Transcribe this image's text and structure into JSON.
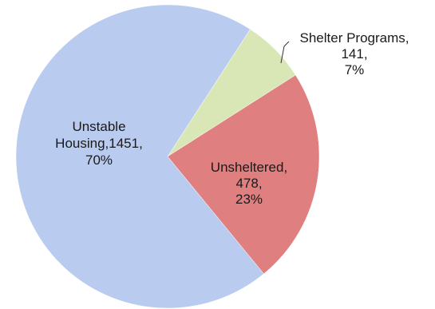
{
  "chart_data": {
    "type": "pie",
    "slices": [
      {
        "label_lines": [
          "Unstable",
          "Housing,1451,",
          "70%"
        ],
        "category": "Unstable Housing",
        "value": 1451,
        "percent": "70%",
        "color": "#b9cbef"
      },
      {
        "label_lines": [
          "Shelter Programs,",
          "141,",
          "7%"
        ],
        "category": "Shelter Programs",
        "value": 141,
        "percent": "7%",
        "color": "#d9e7b7"
      },
      {
        "label_lines": [
          "Unsheltered,",
          "478,",
          "23%"
        ],
        "category": "Unsheltered",
        "value": 478,
        "percent": "23%",
        "color": "#e07f7f"
      }
    ]
  }
}
